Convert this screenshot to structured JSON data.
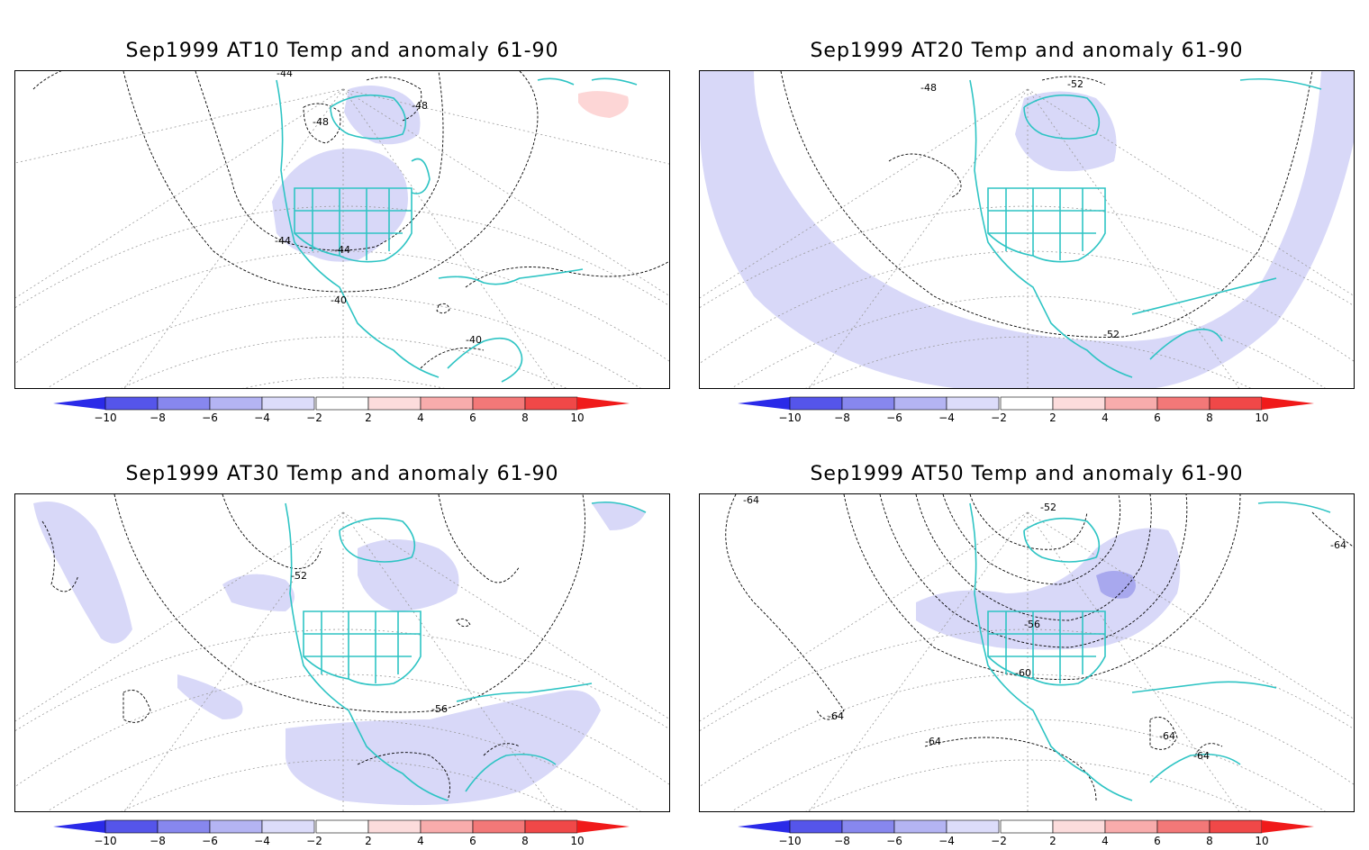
{
  "colors": {
    "coast": "#2ec4c4",
    "neg_light": "#d8d8f8",
    "neg_mid": "#a8a8ee",
    "neg_strong": "#7070e6",
    "pos_light": "#fdd6d6",
    "grid": "#9a9a9a"
  },
  "colorbar": {
    "labels": [
      "−10",
      "−8",
      "−6",
      "−4",
      "−2",
      "2",
      "4",
      "6",
      "8",
      "10"
    ],
    "colors": [
      "#2a2ae8",
      "#5555ea",
      "#8787ee",
      "#b4b4f3",
      "#dcdcfa",
      "#ffffff",
      "#fcdcdc",
      "#f8acac",
      "#f37878",
      "#f04848",
      "#f01a1a"
    ]
  },
  "panels": [
    {
      "title": "Sep1999 AT10 Temp and anomaly 61-90",
      "contour_labels": [
        "-44",
        "-48",
        "-48",
        "-44",
        "-44",
        "-40",
        "-40"
      ]
    },
    {
      "title": "Sep1999 AT20 Temp and anomaly 61-90",
      "contour_labels": [
        "-48",
        "-52",
        "-52"
      ]
    },
    {
      "title": "Sep1999 AT30 Temp and anomaly 61-90",
      "contour_labels": [
        "-52",
        "-56"
      ]
    },
    {
      "title": "Sep1999 AT50 Temp and anomaly 61-90",
      "contour_labels": [
        "-64",
        "-52",
        "-64",
        "-56",
        "-60",
        "-64",
        "-64",
        "-64",
        "-64"
      ]
    }
  ]
}
